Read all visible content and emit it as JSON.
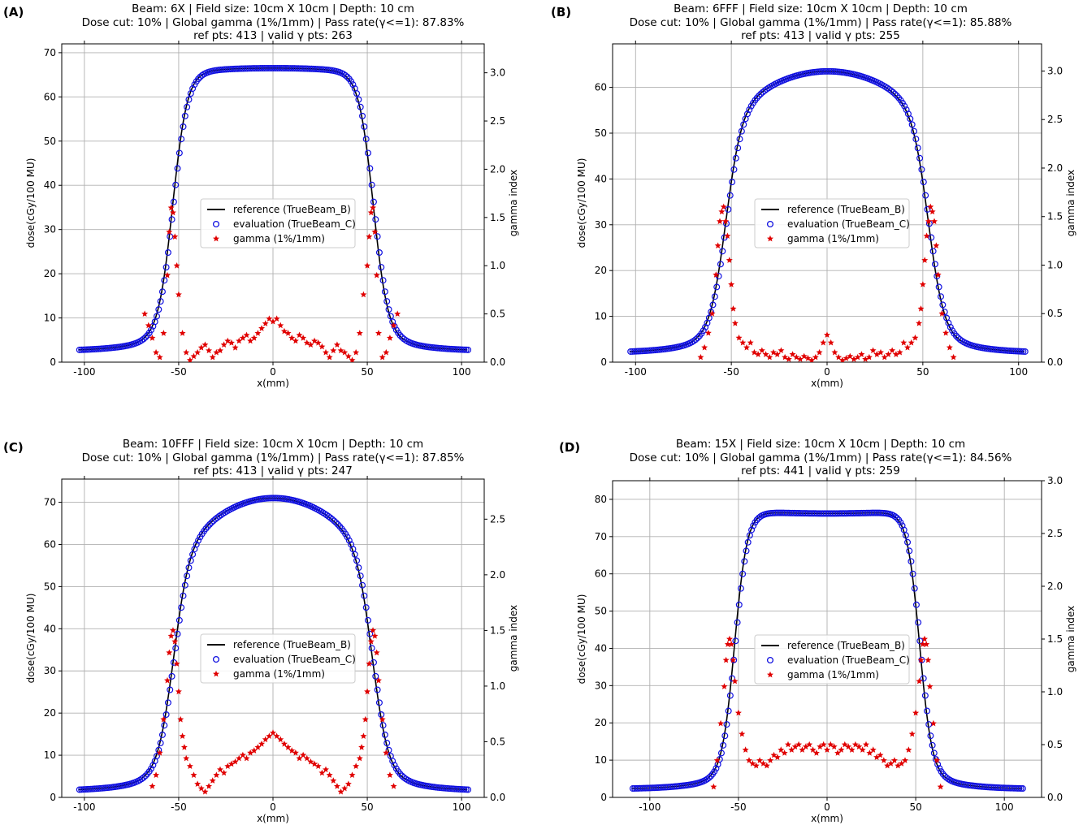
{
  "colors": {
    "reference": "#000000",
    "evaluation": "#1010e0",
    "gamma": "#e00000",
    "grid": "#b0b0b0"
  },
  "legend": {
    "reference": "reference (TrueBeam_B)",
    "evaluation": "evaluation (TrueBeam_C)",
    "gamma": "gamma (1%/1mm)"
  },
  "chart_data": [
    {
      "type": "scatter",
      "panel_label": "(A)",
      "title": [
        "Beam: 6X | Field size: 10cm X 10cm | Depth: 10 cm",
        "Dose cut: 10% | Global gamma (1%/1mm) | Pass rate(γ<=1): 87.83%",
        "ref pts: 413 | valid γ pts: 263"
      ],
      "xlabel": "x(mm)",
      "ylabel": "dose(cGy/100 MU)",
      "y2label": "gamma index",
      "xlim": [
        -112,
        112
      ],
      "ylim": [
        0,
        72
      ],
      "y2lim": [
        0,
        3.3
      ],
      "xticks": [
        -100,
        -50,
        0,
        50,
        100
      ],
      "yticks": [
        0,
        10,
        20,
        30,
        40,
        50,
        60,
        70
      ],
      "y2ticks": [
        0.0,
        0.5,
        1.0,
        1.5,
        2.0,
        2.5,
        3.0
      ],
      "legend_position": "center",
      "profile": {
        "edge_mm": 53,
        "width_mm": 3.8,
        "center_dose": 66.5,
        "shoulder_dose": 65.5,
        "tail_dose": 2.5,
        "x_range": [
          -103,
          103
        ]
      },
      "gamma": [
        [
          -68,
          0.5
        ],
        [
          -66,
          0.38
        ],
        [
          -64,
          0.25
        ],
        [
          -62,
          0.1
        ],
        [
          -60,
          0.05
        ],
        [
          -58,
          0.3
        ],
        [
          -56,
          0.9
        ],
        [
          -55,
          1.35
        ],
        [
          -54,
          1.6
        ],
        [
          -53,
          1.55
        ],
        [
          -52,
          1.3
        ],
        [
          -51,
          1.0
        ],
        [
          -50,
          0.7
        ],
        [
          -48,
          0.3
        ],
        [
          -46,
          0.1
        ],
        [
          -44,
          0.02
        ],
        [
          -42,
          0.06
        ],
        [
          -40,
          0.1
        ],
        [
          -38,
          0.15
        ],
        [
          -36,
          0.18
        ],
        [
          -34,
          0.12
        ],
        [
          -32,
          0.05
        ],
        [
          -30,
          0.1
        ],
        [
          -28,
          0.12
        ],
        [
          -26,
          0.18
        ],
        [
          -24,
          0.22
        ],
        [
          -22,
          0.2
        ],
        [
          -20,
          0.15
        ],
        [
          -18,
          0.22
        ],
        [
          -16,
          0.25
        ],
        [
          -14,
          0.28
        ],
        [
          -12,
          0.22
        ],
        [
          -10,
          0.25
        ],
        [
          -8,
          0.3
        ],
        [
          -6,
          0.35
        ],
        [
          -4,
          0.4
        ],
        [
          -2,
          0.45
        ],
        [
          0,
          0.42
        ],
        [
          2,
          0.45
        ],
        [
          4,
          0.38
        ],
        [
          6,
          0.32
        ],
        [
          8,
          0.3
        ],
        [
          10,
          0.25
        ],
        [
          12,
          0.22
        ],
        [
          14,
          0.28
        ],
        [
          16,
          0.25
        ],
        [
          18,
          0.2
        ],
        [
          20,
          0.18
        ],
        [
          22,
          0.22
        ],
        [
          24,
          0.2
        ],
        [
          26,
          0.16
        ],
        [
          28,
          0.1
        ],
        [
          30,
          0.05
        ],
        [
          32,
          0.12
        ],
        [
          34,
          0.18
        ],
        [
          36,
          0.12
        ],
        [
          38,
          0.1
        ],
        [
          40,
          0.06
        ],
        [
          42,
          0.02
        ],
        [
          44,
          0.1
        ],
        [
          46,
          0.3
        ],
        [
          48,
          0.7
        ],
        [
          50,
          1.0
        ],
        [
          51,
          1.3
        ],
        [
          52,
          1.55
        ],
        [
          53,
          1.6
        ],
        [
          54,
          1.35
        ],
        [
          55,
          0.9
        ],
        [
          56,
          0.3
        ],
        [
          58,
          0.05
        ],
        [
          60,
          0.1
        ],
        [
          62,
          0.25
        ],
        [
          64,
          0.38
        ],
        [
          66,
          0.5
        ]
      ]
    },
    {
      "type": "scatter",
      "panel_label": "(B)",
      "title": [
        "Beam: 6FFF | Field size: 10cm X 10cm | Depth: 10 cm",
        "Dose cut: 10% | Global gamma (1%/1mm) | Pass rate(γ<=1): 85.88%",
        "ref pts: 413 | valid γ pts: 255"
      ],
      "xlabel": "x(mm)",
      "ylabel": "dose(cGy/100 MU)",
      "y2label": "gamma index",
      "xlim": [
        -112,
        112
      ],
      "ylim": [
        0,
        69.5
      ],
      "y2lim": [
        0,
        3.28
      ],
      "xticks": [
        -100,
        -50,
        0,
        50,
        100
      ],
      "yticks": [
        0,
        10,
        20,
        30,
        40,
        50,
        60
      ],
      "y2ticks": [
        0.0,
        0.5,
        1.0,
        1.5,
        2.0,
        2.5,
        3.0
      ],
      "legend_position": "center",
      "profile": {
        "edge_mm": 53,
        "width_mm": 4.0,
        "center_dose": 63.5,
        "shoulder_dose": 53.5,
        "tail_dose": 2.0,
        "x_range": [
          -103,
          103
        ]
      },
      "gamma": [
        [
          -66,
          0.05
        ],
        [
          -64,
          0.15
        ],
        [
          -62,
          0.3
        ],
        [
          -60,
          0.5
        ],
        [
          -58,
          0.9
        ],
        [
          -57,
          1.2
        ],
        [
          -56,
          1.45
        ],
        [
          -55,
          1.55
        ],
        [
          -54,
          1.6
        ],
        [
          -53,
          1.45
        ],
        [
          -52,
          1.3
        ],
        [
          -51,
          1.05
        ],
        [
          -50,
          0.8
        ],
        [
          -49,
          0.55
        ],
        [
          -48,
          0.4
        ],
        [
          -46,
          0.25
        ],
        [
          -44,
          0.2
        ],
        [
          -42,
          0.15
        ],
        [
          -40,
          0.2
        ],
        [
          -38,
          0.1
        ],
        [
          -36,
          0.08
        ],
        [
          -34,
          0.12
        ],
        [
          -32,
          0.08
        ],
        [
          -30,
          0.05
        ],
        [
          -28,
          0.1
        ],
        [
          -26,
          0.08
        ],
        [
          -24,
          0.12
        ],
        [
          -22,
          0.05
        ],
        [
          -20,
          0.03
        ],
        [
          -18,
          0.08
        ],
        [
          -16,
          0.05
        ],
        [
          -14,
          0.03
        ],
        [
          -12,
          0.06
        ],
        [
          -10,
          0.04
        ],
        [
          -8,
          0.02
        ],
        [
          -6,
          0.05
        ],
        [
          -4,
          0.1
        ],
        [
          -2,
          0.2
        ],
        [
          0,
          0.28
        ],
        [
          2,
          0.2
        ],
        [
          4,
          0.1
        ],
        [
          6,
          0.05
        ],
        [
          8,
          0.02
        ],
        [
          10,
          0.04
        ],
        [
          12,
          0.06
        ],
        [
          14,
          0.03
        ],
        [
          16,
          0.05
        ],
        [
          18,
          0.08
        ],
        [
          20,
          0.03
        ],
        [
          22,
          0.05
        ],
        [
          24,
          0.12
        ],
        [
          26,
          0.08
        ],
        [
          28,
          0.1
        ],
        [
          30,
          0.05
        ],
        [
          32,
          0.08
        ],
        [
          34,
          0.12
        ],
        [
          36,
          0.08
        ],
        [
          38,
          0.1
        ],
        [
          40,
          0.2
        ],
        [
          42,
          0.15
        ],
        [
          44,
          0.2
        ],
        [
          46,
          0.25
        ],
        [
          48,
          0.4
        ],
        [
          49,
          0.55
        ],
        [
          50,
          0.8
        ],
        [
          51,
          1.05
        ],
        [
          52,
          1.3
        ],
        [
          53,
          1.45
        ],
        [
          54,
          1.6
        ],
        [
          55,
          1.55
        ],
        [
          56,
          1.45
        ],
        [
          57,
          1.2
        ],
        [
          58,
          0.9
        ],
        [
          60,
          0.5
        ],
        [
          62,
          0.3
        ],
        [
          64,
          0.15
        ],
        [
          66,
          0.05
        ]
      ]
    },
    {
      "type": "scatter",
      "panel_label": "(C)",
      "title": [
        "Beam: 10FFF | Field size: 10cm X 10cm | Depth: 10 cm",
        "Dose cut: 10% | Global gamma (1%/1mm) | Pass rate(γ<=1): 87.85%",
        "ref pts: 413 | valid γ pts: 247"
      ],
      "xlabel": "x(mm)",
      "ylabel": "dose(cGy/100 MU)",
      "y2label": "gamma index",
      "xlim": [
        -112,
        112
      ],
      "ylim": [
        0,
        75.5
      ],
      "y2lim": [
        0,
        2.86
      ],
      "xticks": [
        -100,
        -50,
        0,
        50,
        100
      ],
      "yticks": [
        0,
        10,
        20,
        30,
        40,
        50,
        60,
        70
      ],
      "y2ticks": [
        0.0,
        0.5,
        1.0,
        1.5,
        2.0,
        2.5
      ],
      "legend_position": "center",
      "profile": {
        "edge_mm": 53,
        "width_mm": 4.0,
        "center_dose": 71.0,
        "shoulder_dose": 57.0,
        "tail_dose": 1.5,
        "x_range": [
          -103,
          103
        ]
      },
      "gamma": [
        [
          -64,
          0.1
        ],
        [
          -62,
          0.2
        ],
        [
          -60,
          0.4
        ],
        [
          -58,
          0.7
        ],
        [
          -56,
          1.05
        ],
        [
          -55,
          1.3
        ],
        [
          -54,
          1.45
        ],
        [
          -53,
          1.5
        ],
        [
          -52,
          1.4
        ],
        [
          -51,
          1.2
        ],
        [
          -50,
          0.95
        ],
        [
          -49,
          0.7
        ],
        [
          -48,
          0.55
        ],
        [
          -47,
          0.45
        ],
        [
          -46,
          0.35
        ],
        [
          -44,
          0.28
        ],
        [
          -42,
          0.2
        ],
        [
          -40,
          0.12
        ],
        [
          -38,
          0.08
        ],
        [
          -36,
          0.05
        ],
        [
          -34,
          0.1
        ],
        [
          -32,
          0.15
        ],
        [
          -30,
          0.2
        ],
        [
          -28,
          0.25
        ],
        [
          -26,
          0.22
        ],
        [
          -24,
          0.28
        ],
        [
          -22,
          0.3
        ],
        [
          -20,
          0.32
        ],
        [
          -18,
          0.35
        ],
        [
          -16,
          0.38
        ],
        [
          -14,
          0.35
        ],
        [
          -12,
          0.4
        ],
        [
          -10,
          0.42
        ],
        [
          -8,
          0.45
        ],
        [
          -6,
          0.48
        ],
        [
          -4,
          0.52
        ],
        [
          -2,
          0.55
        ],
        [
          0,
          0.58
        ],
        [
          2,
          0.55
        ],
        [
          4,
          0.52
        ],
        [
          6,
          0.48
        ],
        [
          8,
          0.45
        ],
        [
          10,
          0.42
        ],
        [
          12,
          0.4
        ],
        [
          14,
          0.35
        ],
        [
          16,
          0.38
        ],
        [
          18,
          0.35
        ],
        [
          20,
          0.32
        ],
        [
          22,
          0.3
        ],
        [
          24,
          0.28
        ],
        [
          26,
          0.22
        ],
        [
          28,
          0.25
        ],
        [
          30,
          0.2
        ],
        [
          32,
          0.15
        ],
        [
          34,
          0.1
        ],
        [
          36,
          0.05
        ],
        [
          38,
          0.08
        ],
        [
          40,
          0.12
        ],
        [
          42,
          0.2
        ],
        [
          44,
          0.28
        ],
        [
          46,
          0.35
        ],
        [
          47,
          0.45
        ],
        [
          48,
          0.55
        ],
        [
          49,
          0.7
        ],
        [
          50,
          0.95
        ],
        [
          51,
          1.2
        ],
        [
          52,
          1.4
        ],
        [
          53,
          1.5
        ],
        [
          54,
          1.45
        ],
        [
          55,
          1.3
        ],
        [
          56,
          1.05
        ],
        [
          58,
          0.7
        ],
        [
          60,
          0.4
        ],
        [
          62,
          0.2
        ],
        [
          64,
          0.1
        ]
      ]
    },
    {
      "type": "scatter",
      "panel_label": "(D)",
      "title": [
        "Beam: 15X | Field size: 10cm X 10cm | Depth: 10 cm",
        "Dose cut: 10% | Global gamma (1%/1mm) | Pass rate(γ<=1): 84.56%",
        "ref pts: 441 | valid γ pts: 259"
      ],
      "xlabel": "x(mm)",
      "ylabel": "dose(cGy/100 MU)",
      "y2label": "gamma index",
      "xlim": [
        -121,
        121
      ],
      "ylim": [
        0,
        85
      ],
      "y2lim": [
        0,
        3.0
      ],
      "xticks": [
        -100,
        -50,
        0,
        50,
        100
      ],
      "yticks": [
        0,
        10,
        20,
        30,
        40,
        50,
        60,
        70,
        80
      ],
      "y2ticks": [
        0.0,
        0.5,
        1.0,
        1.5,
        2.0,
        2.5,
        3.0
      ],
      "legend_position": "center",
      "profile": {
        "edge_mm": 52,
        "width_mm": 3.5,
        "center_dose": 76.2,
        "shoulder_dose": 77.0,
        "tail_dose": 2.2,
        "x_range": [
          -110,
          110
        ]
      },
      "gamma": [
        [
          -64,
          0.1
        ],
        [
          -62,
          0.35
        ],
        [
          -60,
          0.7
        ],
        [
          -58,
          1.05
        ],
        [
          -57,
          1.3
        ],
        [
          -56,
          1.45
        ],
        [
          -55,
          1.5
        ],
        [
          -54,
          1.45
        ],
        [
          -53,
          1.3
        ],
        [
          -52,
          1.1
        ],
        [
          -50,
          0.8
        ],
        [
          -48,
          0.6
        ],
        [
          -46,
          0.45
        ],
        [
          -44,
          0.35
        ],
        [
          -42,
          0.32
        ],
        [
          -40,
          0.3
        ],
        [
          -38,
          0.35
        ],
        [
          -36,
          0.32
        ],
        [
          -34,
          0.3
        ],
        [
          -32,
          0.35
        ],
        [
          -30,
          0.4
        ],
        [
          -28,
          0.38
        ],
        [
          -26,
          0.45
        ],
        [
          -24,
          0.42
        ],
        [
          -22,
          0.5
        ],
        [
          -20,
          0.45
        ],
        [
          -18,
          0.48
        ],
        [
          -16,
          0.5
        ],
        [
          -14,
          0.45
        ],
        [
          -12,
          0.48
        ],
        [
          -10,
          0.5
        ],
        [
          -8,
          0.45
        ],
        [
          -6,
          0.42
        ],
        [
          -4,
          0.48
        ],
        [
          -2,
          0.5
        ],
        [
          0,
          0.45
        ],
        [
          2,
          0.5
        ],
        [
          4,
          0.48
        ],
        [
          6,
          0.42
        ],
        [
          8,
          0.45
        ],
        [
          10,
          0.5
        ],
        [
          12,
          0.48
        ],
        [
          14,
          0.45
        ],
        [
          16,
          0.5
        ],
        [
          18,
          0.48
        ],
        [
          20,
          0.45
        ],
        [
          22,
          0.5
        ],
        [
          24,
          0.42
        ],
        [
          26,
          0.45
        ],
        [
          28,
          0.38
        ],
        [
          30,
          0.4
        ],
        [
          32,
          0.35
        ],
        [
          34,
          0.3
        ],
        [
          36,
          0.32
        ],
        [
          38,
          0.35
        ],
        [
          40,
          0.3
        ],
        [
          42,
          0.32
        ],
        [
          44,
          0.35
        ],
        [
          46,
          0.45
        ],
        [
          48,
          0.6
        ],
        [
          50,
          0.8
        ],
        [
          52,
          1.1
        ],
        [
          53,
          1.3
        ],
        [
          54,
          1.45
        ],
        [
          55,
          1.5
        ],
        [
          56,
          1.45
        ],
        [
          57,
          1.3
        ],
        [
          58,
          1.05
        ],
        [
          60,
          0.7
        ],
        [
          62,
          0.35
        ],
        [
          64,
          0.1
        ]
      ]
    }
  ]
}
